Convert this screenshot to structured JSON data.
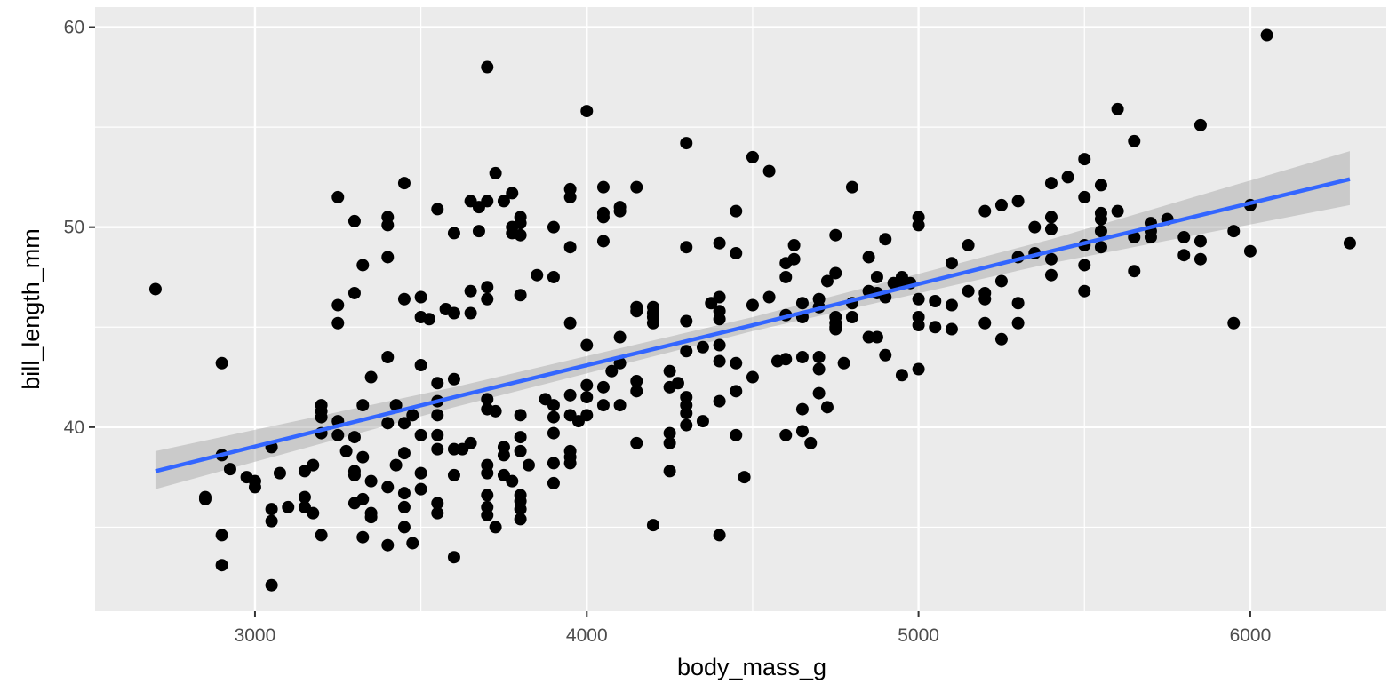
{
  "chart_data": {
    "type": "scatter",
    "x_label": "body_mass_g",
    "y_label": "bill_length_mm",
    "xlim": [
      2518,
      6410
    ],
    "ylim": [
      30.8,
      61.0
    ],
    "xticks": [
      3000,
      4000,
      5000,
      6000
    ],
    "yticks": [
      40,
      50,
      60
    ],
    "minor_xticks": [
      3500,
      4500,
      5500
    ],
    "minor_yticks": [
      35,
      45,
      55
    ],
    "grid": true,
    "point_color": "#000000",
    "x": [
      2700,
      2850,
      2850,
      2900,
      2900,
      2900,
      2900,
      2925,
      2975,
      3000,
      3000,
      3050,
      3050,
      3050,
      3050,
      3075,
      3100,
      3150,
      3150,
      3150,
      3175,
      3175,
      3200,
      3200,
      3200,
      3200,
      3200,
      3250,
      3250,
      3250,
      3250,
      3250,
      3275,
      3300,
      3300,
      3300,
      3300,
      3300,
      3300,
      3325,
      3325,
      3325,
      3325,
      3325,
      3350,
      3350,
      3350,
      3350,
      3400,
      3400,
      3400,
      3400,
      3400,
      3400,
      3400,
      3425,
      3425,
      3450,
      3450,
      3450,
      3450,
      3450,
      3450,
      3450,
      3475,
      3475,
      3500,
      3500,
      3500,
      3500,
      3500,
      3500,
      3525,
      3550,
      3550,
      3550,
      3550,
      3550,
      3550,
      3550,
      3550,
      3575,
      3600,
      3600,
      3600,
      3600,
      3600,
      3600,
      3625,
      3650,
      3650,
      3650,
      3650,
      3675,
      3675,
      3700,
      3700,
      3700,
      3700,
      3700,
      3700,
      3700,
      3700,
      3700,
      3700,
      3700,
      3725,
      3725,
      3725,
      3750,
      3750,
      3750,
      3750,
      3775,
      3775,
      3775,
      3775,
      3800,
      3800,
      3800,
      3800,
      3800,
      3800,
      3800,
      3800,
      3800,
      3800,
      3800,
      3825,
      3850,
      3875,
      3900,
      3900,
      3900,
      3900,
      3900,
      3900,
      3900,
      3950,
      3950,
      3950,
      3950,
      3950,
      3950,
      3950,
      3950,
      3950,
      3975,
      4000,
      4000,
      4000,
      4000,
      4000,
      4050,
      4050,
      4050,
      4050,
      4050,
      4050,
      4075,
      4100,
      4100,
      4100,
      4100,
      4100,
      4150,
      4150,
      4150,
      4150,
      4150,
      4150,
      4200,
      4200,
      4200,
      4200,
      4200,
      4250,
      4250,
      4250,
      4250,
      4250,
      4275,
      4300,
      4300,
      4300,
      4300,
      4300,
      4300,
      4300,
      4300,
      4350,
      4350,
      4375,
      4400,
      4400,
      4400,
      4400,
      4400,
      4400,
      4400,
      4400,
      4450,
      4450,
      4450,
      4450,
      4450,
      4475,
      4500,
      4500,
      4500,
      4550,
      4550,
      4575,
      4600,
      4600,
      4600,
      4600,
      4600,
      4625,
      4625,
      4650,
      4650,
      4650,
      4650,
      4650,
      4675,
      4700,
      4700,
      4700,
      4700,
      4700,
      4725,
      4725,
      4750,
      4750,
      4750,
      4750,
      4750,
      4750,
      4775,
      4800,
      4800,
      4800,
      4850,
      4850,
      4850,
      4875,
      4875,
      4875,
      4900,
      4900,
      4900,
      4925,
      4950,
      4950,
      4950,
      4975,
      5000,
      5000,
      5000,
      5000,
      5000,
      5000,
      5050,
      5050,
      5100,
      5100,
      5100,
      5150,
      5150,
      5200,
      5200,
      5200,
      5200,
      5250,
      5250,
      5250,
      5300,
      5300,
      5300,
      5300,
      5350,
      5350,
      5400,
      5400,
      5400,
      5400,
      5400,
      5450,
      5500,
      5500,
      5500,
      5500,
      5500,
      5550,
      5550,
      5550,
      5550,
      5550,
      5600,
      5600,
      5650,
      5650,
      5650,
      5700,
      5700,
      5700,
      5750,
      5800,
      5800,
      5850,
      5850,
      5850,
      5950,
      5950,
      6000,
      6000,
      6050,
      6300
    ],
    "y": [
      46.9,
      36.5,
      36.4,
      43.2,
      38.6,
      34.6,
      33.1,
      37.9,
      37.5,
      37.3,
      37.0,
      39.0,
      35.9,
      35.3,
      32.1,
      37.7,
      36.0,
      37.8,
      36.5,
      36.0,
      38.1,
      35.7,
      41.1,
      40.8,
      40.5,
      39.7,
      34.6,
      51.5,
      46.1,
      45.2,
      40.3,
      39.6,
      38.8,
      50.3,
      46.7,
      39.5,
      37.8,
      37.6,
      36.2,
      48.1,
      41.1,
      38.5,
      36.4,
      34.5,
      42.5,
      37.3,
      35.7,
      35.5,
      50.5,
      50.1,
      48.5,
      43.5,
      40.2,
      37.0,
      34.1,
      41.1,
      38.1,
      52.2,
      46.4,
      40.2,
      38.7,
      36.7,
      36.0,
      35.0,
      40.6,
      34.2,
      46.5,
      45.5,
      43.1,
      39.6,
      37.7,
      36.9,
      45.4,
      50.9,
      42.2,
      41.3,
      40.6,
      39.6,
      38.9,
      36.2,
      35.7,
      45.9,
      49.7,
      45.7,
      42.4,
      38.9,
      37.6,
      33.5,
      38.9,
      51.3,
      46.8,
      45.7,
      39.2,
      51.0,
      49.8,
      58.0,
      51.3,
      47.0,
      46.4,
      41.4,
      40.9,
      38.1,
      37.7,
      36.6,
      36.0,
      35.6,
      52.7,
      40.8,
      35.0,
      51.3,
      39.0,
      38.6,
      37.6,
      51.7,
      50.0,
      49.7,
      37.3,
      50.5,
      50.2,
      49.6,
      46.6,
      40.6,
      39.5,
      38.8,
      36.6,
      36.3,
      35.9,
      35.4,
      38.1,
      47.6,
      41.4,
      50.0,
      47.5,
      41.1,
      40.5,
      39.7,
      38.2,
      37.2,
      51.9,
      51.5,
      49.0,
      45.2,
      41.6,
      40.6,
      38.8,
      38.5,
      38.2,
      40.3,
      55.8,
      44.1,
      42.1,
      41.5,
      40.6,
      52.0,
      50.7,
      50.5,
      49.3,
      42.0,
      41.1,
      42.8,
      51.0,
      50.8,
      44.5,
      43.2,
      41.1,
      52.0,
      46.0,
      45.8,
      42.3,
      41.8,
      39.2,
      46.0,
      45.7,
      45.5,
      45.2,
      35.1,
      42.8,
      42.0,
      39.7,
      39.2,
      37.8,
      42.2,
      54.2,
      49.0,
      45.3,
      43.8,
      41.5,
      41.1,
      40.7,
      40.1,
      44.0,
      40.3,
      46.2,
      49.2,
      46.5,
      45.8,
      45.4,
      44.1,
      43.3,
      41.3,
      34.6,
      50.8,
      48.7,
      43.2,
      41.8,
      39.6,
      37.5,
      53.5,
      46.1,
      42.5,
      52.8,
      46.5,
      43.3,
      48.2,
      47.5,
      45.6,
      43.4,
      39.6,
      49.1,
      48.4,
      46.2,
      45.5,
      43.5,
      40.9,
      39.8,
      39.2,
      46.4,
      46.0,
      43.5,
      42.9,
      41.7,
      47.3,
      41.0,
      49.6,
      47.7,
      45.5,
      45.2,
      45.0,
      44.9,
      43.2,
      52.0,
      46.2,
      45.5,
      48.5,
      46.8,
      44.5,
      47.5,
      46.7,
      44.5,
      49.4,
      46.5,
      43.6,
      47.2,
      47.5,
      47.2,
      42.6,
      47.2,
      50.5,
      50.1,
      46.4,
      45.5,
      45.1,
      42.9,
      46.3,
      45.0,
      48.2,
      46.1,
      44.9,
      49.1,
      46.8,
      50.8,
      46.7,
      46.4,
      45.2,
      51.1,
      47.3,
      44.4,
      51.3,
      48.5,
      46.2,
      45.2,
      50.0,
      48.7,
      52.2,
      50.5,
      49.9,
      48.4,
      47.6,
      52.5,
      53.4,
      51.5,
      49.1,
      48.1,
      46.8,
      52.1,
      50.7,
      50.4,
      49.8,
      49.0,
      55.9,
      50.8,
      54.3,
      49.5,
      47.8,
      50.2,
      49.8,
      49.5,
      50.4,
      49.5,
      48.6,
      55.1,
      49.3,
      48.4,
      49.8,
      45.2,
      51.1,
      48.8,
      59.6,
      49.2
    ],
    "smooth": {
      "color": "#3366ff",
      "band_color": "#999999",
      "x": [
        2700,
        3600,
        4500,
        5400,
        6300
      ],
      "y": [
        37.8,
        41.5,
        45.1,
        48.8,
        52.4
      ],
      "lower": [
        36.9,
        41.0,
        44.8,
        48.2,
        51.1
      ],
      "upper": [
        38.8,
        42.0,
        45.5,
        49.4,
        53.8
      ]
    }
  }
}
